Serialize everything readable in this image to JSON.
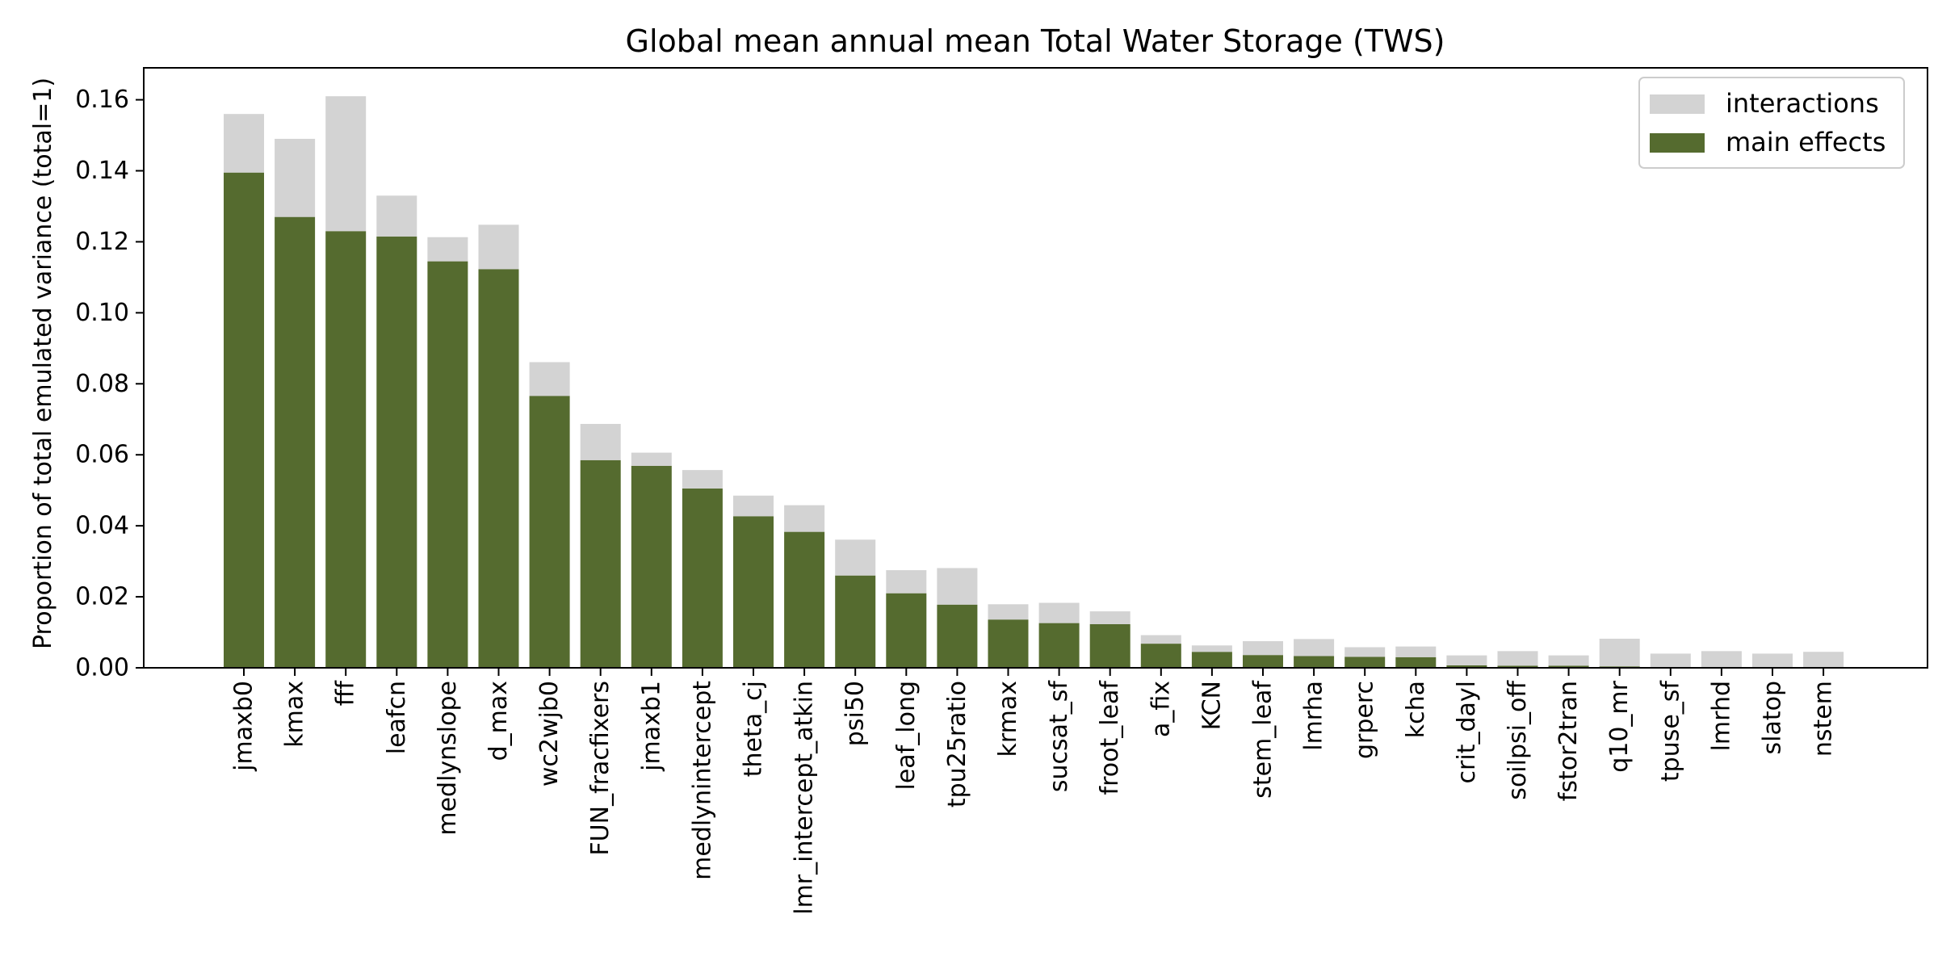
{
  "colors": {
    "main_effects": "#556b2f",
    "interactions": "#d3d3d3",
    "axis": "#000000",
    "legend_border": "#cccccc"
  },
  "chart_data": {
    "type": "bar",
    "stacked": true,
    "title": "Global mean annual mean Total Water Storage (TWS)",
    "xlabel": "",
    "ylabel": "Proportion of total emulated variance (total=1)",
    "ylim": [
      0,
      0.169
    ],
    "yticks": [
      0.0,
      0.02,
      0.04,
      0.06,
      0.08,
      0.1,
      0.12,
      0.14,
      0.16
    ],
    "ytick_labels": [
      "0.00",
      "0.02",
      "0.04",
      "0.06",
      "0.08",
      "0.10",
      "0.12",
      "0.14",
      "0.16"
    ],
    "legend_position": "top-right",
    "legend": [
      "interactions",
      "main effects"
    ],
    "grid": false,
    "categories": [
      "jmaxb0",
      "kmax",
      "fff",
      "leafcn",
      "medlynslope",
      "d_max",
      "wc2wjb0",
      "FUN_fracfixers",
      "jmaxb1",
      "medlynintercept",
      "theta_cj",
      "lmr_intercept_atkin",
      "psi50",
      "leaf_long",
      "tpu25ratio",
      "krmax",
      "sucsat_sf",
      "froot_leaf",
      "a_fix",
      "KCN",
      "stem_leaf",
      "lmrha",
      "grperc",
      "kcha",
      "crit_dayl",
      "soilpsi_off",
      "fstor2tran",
      "q10_mr",
      "tpuse_sf",
      "lmrhd",
      "slatop",
      "nstem"
    ],
    "series": [
      {
        "name": "main effects",
        "values": [
          0.1395,
          0.127,
          0.123,
          0.1215,
          0.1145,
          0.1123,
          0.0766,
          0.0585,
          0.0569,
          0.0505,
          0.0427,
          0.0383,
          0.026,
          0.021,
          0.0178,
          0.0136,
          0.0126,
          0.0123,
          0.0068,
          0.0045,
          0.0036,
          0.0033,
          0.0031,
          0.003,
          0.0007,
          0.0006,
          0.0006,
          0.0004,
          0.0,
          0.0,
          0.0,
          0.0
        ]
      },
      {
        "name": "interactions",
        "values": [
          0.0165,
          0.022,
          0.038,
          0.0115,
          0.0068,
          0.0125,
          0.0095,
          0.0102,
          0.0037,
          0.0052,
          0.0058,
          0.0075,
          0.0101,
          0.0065,
          0.0103,
          0.0043,
          0.0057,
          0.0036,
          0.0024,
          0.0018,
          0.0039,
          0.0048,
          0.0027,
          0.003,
          0.0028,
          0.0041,
          0.0029,
          0.0078,
          0.004,
          0.0047,
          0.004,
          0.0045
        ]
      }
    ]
  }
}
